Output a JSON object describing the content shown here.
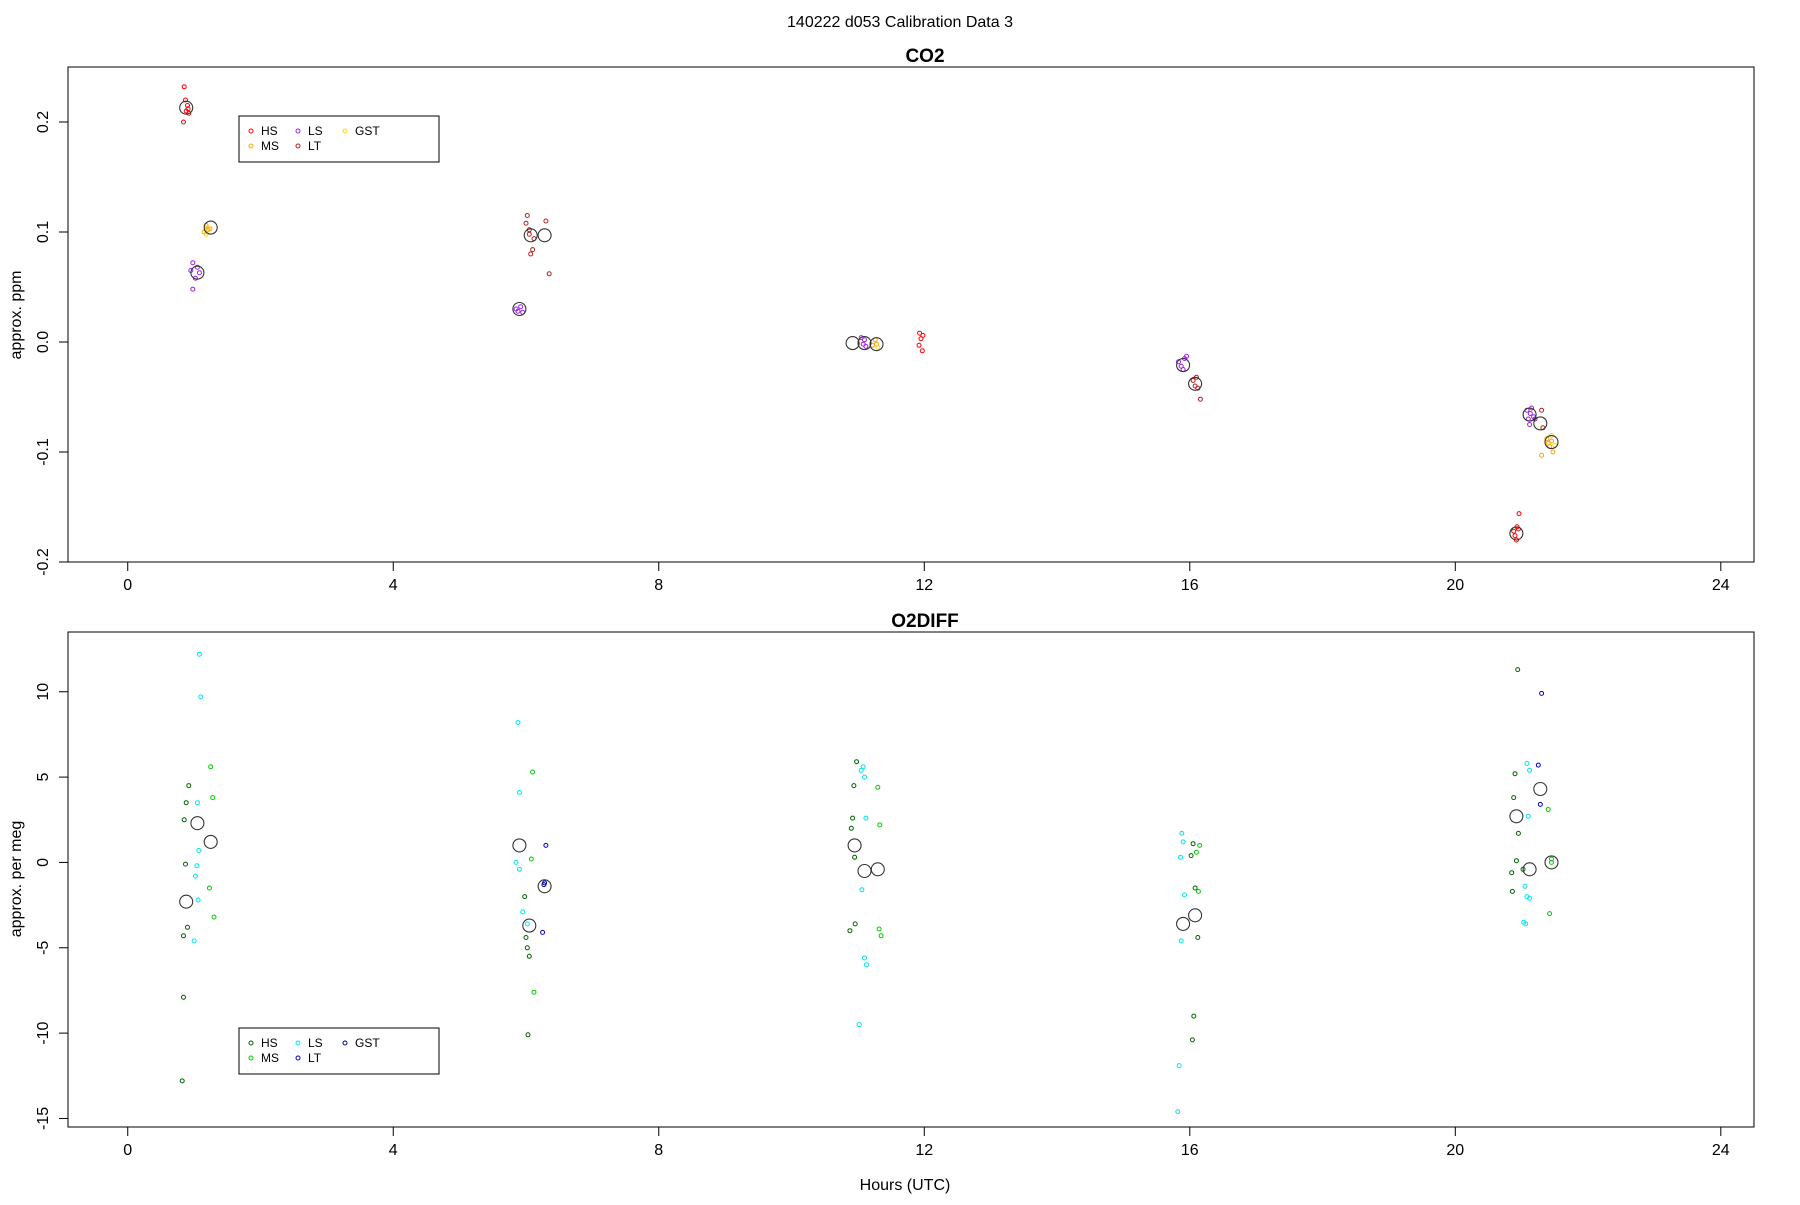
{
  "figure": {
    "title": "140222   d053   Calibration Data 3",
    "xlabel": "Hours (UTC)"
  },
  "chart_data": [
    {
      "type": "scatter",
      "title": "CO2",
      "xlabel": "",
      "ylabel": "approx. ppm",
      "xlim": [
        -0.9,
        24.5
      ],
      "ylim": [
        -0.2,
        0.25
      ],
      "xticks": [
        0,
        4,
        8,
        12,
        16,
        20,
        24
      ],
      "yticks": [
        -0.2,
        -0.1,
        0.0,
        0.1,
        0.2
      ],
      "ytick_labels": [
        "-0.2",
        "-0.1",
        "0.0",
        "0.1",
        "0.2"
      ],
      "grid": false,
      "legend_placement": "top-left",
      "colors": {
        "HS": "#ff0000",
        "MS": "#ffa500",
        "LS": "#a020f0",
        "LT": "#b22222",
        "GST": "#ffd700"
      },
      "legend": [
        "HS",
        "MS",
        "LS",
        "LT",
        "GST"
      ],
      "series": [
        {
          "name": "HS",
          "points": [
            [
              0.85,
              0.232
            ],
            [
              0.88,
              0.21
            ],
            [
              0.9,
              0.215
            ],
            [
              0.92,
              0.208
            ],
            [
              0.84,
              0.2
            ],
            [
              0.87,
              0.22
            ],
            [
              0.91,
              0.212
            ],
            [
              11.93,
              0.008
            ],
            [
              11.95,
              0.003
            ],
            [
              11.97,
              -0.008
            ],
            [
              11.92,
              -0.003
            ],
            [
              11.98,
              0.006
            ],
            [
              20.88,
              -0.172
            ],
            [
              20.9,
              -0.176
            ],
            [
              20.93,
              -0.168
            ],
            [
              20.92,
              -0.18
            ],
            [
              20.95,
              -0.17
            ],
            [
              20.96,
              -0.156
            ]
          ]
        },
        {
          "name": "MS",
          "points": [
            [
              1.15,
              0.1
            ],
            [
              1.18,
              0.106
            ],
            [
              1.21,
              0.102
            ],
            [
              1.24,
              0.103
            ],
            [
              11.22,
              -0.003
            ],
            [
              11.26,
              0.002
            ],
            [
              11.28,
              -0.002
            ],
            [
              21.38,
              -0.088
            ],
            [
              21.4,
              -0.092
            ],
            [
              21.42,
              -0.095
            ],
            [
              21.45,
              -0.09
            ],
            [
              21.47,
              -0.1
            ],
            [
              21.3,
              -0.103
            ]
          ]
        },
        {
          "name": "LS",
          "points": [
            [
              0.95,
              0.065
            ],
            [
              0.98,
              0.072
            ],
            [
              1.02,
              0.058
            ],
            [
              1.05,
              0.068
            ],
            [
              0.98,
              0.048
            ],
            [
              1.08,
              0.063
            ],
            [
              5.85,
              0.03
            ],
            [
              5.88,
              0.028
            ],
            [
              5.92,
              0.032
            ],
            [
              5.95,
              0.027
            ],
            [
              11.05,
              0.004
            ],
            [
              11.08,
              -0.002
            ],
            [
              11.1,
              0.002
            ],
            [
              11.12,
              -0.004
            ],
            [
              15.83,
              -0.018
            ],
            [
              15.87,
              -0.022
            ],
            [
              15.92,
              -0.015
            ],
            [
              15.95,
              -0.013
            ],
            [
              15.9,
              -0.025
            ],
            [
              21.08,
              -0.062
            ],
            [
              21.1,
              -0.07
            ],
            [
              21.13,
              -0.065
            ],
            [
              21.15,
              -0.06
            ],
            [
              21.18,
              -0.068
            ],
            [
              21.12,
              -0.075
            ],
            [
              21.2,
              -0.07
            ]
          ]
        },
        {
          "name": "LT",
          "points": [
            [
              6.02,
              0.115
            ],
            [
              6.05,
              0.102
            ],
            [
              6.07,
              0.08
            ],
            [
              6.1,
              0.084
            ],
            [
              6.12,
              0.094
            ],
            [
              6.0,
              0.108
            ],
            [
              6.35,
              0.062
            ],
            [
              6.3,
              0.11
            ],
            [
              6.05,
              0.098
            ],
            [
              16.05,
              -0.035
            ],
            [
              16.08,
              -0.04
            ],
            [
              16.1,
              -0.032
            ],
            [
              16.12,
              -0.042
            ],
            [
              16.16,
              -0.052
            ],
            [
              21.3,
              -0.062
            ],
            [
              21.32,
              -0.078
            ]
          ]
        },
        {
          "name": "GST",
          "points": [
            [
              1.18,
              0.098
            ],
            [
              1.2,
              0.104
            ],
            [
              11.3,
              -0.005
            ],
            [
              21.45,
              -0.085
            ],
            [
              21.5,
              -0.094
            ]
          ]
        },
        {
          "name": "",
          "style": "mean",
          "points": [
            [
              0.88,
              0.213
            ],
            [
              1.05,
              0.063
            ],
            [
              1.25,
              0.104
            ],
            [
              5.9,
              0.03
            ],
            [
              6.07,
              0.097
            ],
            [
              6.28,
              0.097
            ],
            [
              10.92,
              -0.001
            ],
            [
              11.1,
              -0.001
            ],
            [
              11.28,
              -0.002
            ],
            [
              15.9,
              -0.021
            ],
            [
              16.08,
              -0.038
            ],
            [
              20.92,
              -0.174
            ],
            [
              21.12,
              -0.066
            ],
            [
              21.28,
              -0.074
            ],
            [
              21.45,
              -0.091
            ]
          ]
        }
      ]
    },
    {
      "type": "scatter",
      "title": "O2DIFF",
      "xlabel": "Hours (UTC)",
      "ylabel": "approx. per meg",
      "xlim": [
        -0.9,
        24.5
      ],
      "ylim": [
        -15.5,
        13.5
      ],
      "xticks": [
        0,
        4,
        8,
        12,
        16,
        20,
        24
      ],
      "yticks": [
        -15,
        -10,
        -5,
        0,
        5,
        10
      ],
      "ytick_labels": [
        "-15",
        "-10",
        "-5",
        "0",
        "5",
        "10"
      ],
      "grid": false,
      "legend_placement": "bottom-left",
      "colors": {
        "HS": "#006400",
        "MS": "#00cc00",
        "LS": "#00e5ee",
        "LT": "#0000cd",
        "GST": "#00008b"
      },
      "legend": [
        "HS",
        "MS",
        "LS",
        "LT",
        "GST"
      ],
      "series": [
        {
          "name": "HS",
          "points": [
            [
              0.88,
              3.5
            ],
            [
              0.92,
              4.5
            ],
            [
              0.85,
              2.5
            ],
            [
              0.87,
              -0.1
            ],
            [
              0.9,
              -3.8
            ],
            [
              0.84,
              -4.3
            ],
            [
              0.84,
              -7.9
            ],
            [
              0.82,
              -12.8
            ],
            [
              5.98,
              -2.0
            ],
            [
              6.0,
              -4.4
            ],
            [
              6.02,
              -5.0
            ],
            [
              6.05,
              -5.5
            ],
            [
              6.03,
              -10.1
            ],
            [
              10.92,
              2.6
            ],
            [
              10.94,
              4.5
            ],
            [
              10.9,
              2.0
            ],
            [
              10.95,
              0.3
            ],
            [
              10.88,
              -4.0
            ],
            [
              10.96,
              -3.6
            ],
            [
              10.98,
              5.9
            ],
            [
              16.02,
              0.4
            ],
            [
              16.05,
              1.1
            ],
            [
              16.08,
              -1.5
            ],
            [
              16.06,
              -9.0
            ],
            [
              16.04,
              -10.4
            ],
            [
              16.12,
              -4.4
            ],
            [
              20.88,
              3.8
            ],
            [
              20.9,
              5.2
            ],
            [
              20.92,
              0.1
            ],
            [
              20.85,
              -0.6
            ],
            [
              20.86,
              -1.7
            ],
            [
              20.95,
              1.7
            ],
            [
              20.94,
              11.3
            ],
            [
              21.02,
              -0.4
            ]
          ]
        },
        {
          "name": "MS",
          "points": [
            [
              1.25,
              5.6
            ],
            [
              1.28,
              3.8
            ],
            [
              1.23,
              -1.5
            ],
            [
              1.3,
              -3.2
            ],
            [
              6.1,
              5.3
            ],
            [
              6.08,
              0.2
            ],
            [
              6.12,
              -7.6
            ],
            [
              11.3,
              4.4
            ],
            [
              11.33,
              2.2
            ],
            [
              11.32,
              -3.9
            ],
            [
              11.35,
              -4.3
            ],
            [
              16.13,
              -1.7
            ],
            [
              16.15,
              1.0
            ],
            [
              16.1,
              0.6
            ],
            [
              21.4,
              3.1
            ],
            [
              21.45,
              0.0
            ],
            [
              21.42,
              -3.0
            ],
            [
              21.45,
              0.2
            ]
          ]
        },
        {
          "name": "LS",
          "points": [
            [
              1.08,
              12.2
            ],
            [
              1.1,
              9.7
            ],
            [
              1.05,
              3.5
            ],
            [
              1.07,
              0.7
            ],
            [
              1.04,
              -0.2
            ],
            [
              1.02,
              -0.8
            ],
            [
              1.06,
              -2.2
            ],
            [
              1.0,
              -4.6
            ],
            [
              5.88,
              8.2
            ],
            [
              5.9,
              4.1
            ],
            [
              5.85,
              0.0
            ],
            [
              5.9,
              -0.4
            ],
            [
              5.95,
              -2.9
            ],
            [
              6.02,
              -3.6
            ],
            [
              11.05,
              5.4
            ],
            [
              11.08,
              5.6
            ],
            [
              11.1,
              5.0
            ],
            [
              11.12,
              2.6
            ],
            [
              11.06,
              -1.6
            ],
            [
              11.1,
              -5.6
            ],
            [
              11.13,
              -6.0
            ],
            [
              11.02,
              -9.5
            ],
            [
              15.88,
              1.7
            ],
            [
              15.9,
              1.2
            ],
            [
              15.86,
              0.3
            ],
            [
              15.92,
              -1.9
            ],
            [
              15.87,
              -4.6
            ],
            [
              15.84,
              -11.9
            ],
            [
              15.82,
              -14.6
            ],
            [
              21.08,
              5.8
            ],
            [
              21.12,
              5.4
            ],
            [
              21.1,
              2.7
            ],
            [
              21.05,
              -1.4
            ],
            [
              21.08,
              -2.0
            ],
            [
              21.12,
              -2.1
            ],
            [
              21.06,
              -3.6
            ],
            [
              21.03,
              -3.5
            ]
          ]
        },
        {
          "name": "LT",
          "points": [
            [
              6.3,
              1.0
            ],
            [
              6.28,
              -1.2
            ],
            [
              6.25,
              -4.1
            ],
            [
              21.25,
              5.7
            ],
            [
              21.28,
              3.4
            ],
            [
              21.3,
              9.9
            ]
          ]
        },
        {
          "name": "GST",
          "points": [
            [
              6.27,
              -1.3
            ]
          ]
        },
        {
          "name": "",
          "style": "mean",
          "points": [
            [
              0.88,
              -2.3
            ],
            [
              1.05,
              2.3
            ],
            [
              1.25,
              1.2
            ],
            [
              5.9,
              1.0
            ],
            [
              6.05,
              -3.7
            ],
            [
              6.28,
              -1.4
            ],
            [
              10.95,
              1.0
            ],
            [
              11.1,
              -0.5
            ],
            [
              11.3,
              -0.4
            ],
            [
              15.9,
              -3.6
            ],
            [
              16.08,
              -3.1
            ],
            [
              20.92,
              2.7
            ],
            [
              21.12,
              -0.4
            ],
            [
              21.28,
              4.3
            ],
            [
              21.45,
              0.0
            ]
          ]
        }
      ]
    }
  ]
}
